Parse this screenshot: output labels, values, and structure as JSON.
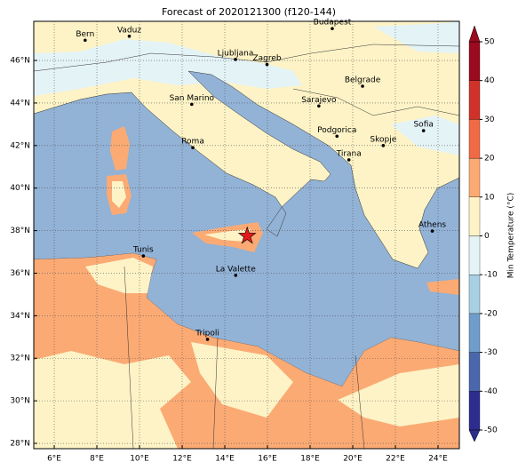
{
  "title": "Forecast of 2020121300 (f120-144)",
  "map": {
    "xlim": [
      5.04,
      25
    ],
    "ylim": [
      27.75,
      47.84
    ],
    "grid": true,
    "xticks": [
      {
        "value": 6,
        "label": "6°E"
      },
      {
        "value": 8,
        "label": "8°E"
      },
      {
        "value": 10,
        "label": "10°E"
      },
      {
        "value": 12,
        "label": "12°E"
      },
      {
        "value": 14,
        "label": "14°E"
      },
      {
        "value": 16,
        "label": "16°E"
      },
      {
        "value": 18,
        "label": "18°E"
      },
      {
        "value": 20,
        "label": "20°E"
      },
      {
        "value": 22,
        "label": "22°E"
      },
      {
        "value": 24,
        "label": "24°E"
      }
    ],
    "yticks": [
      {
        "value": 28,
        "label": "28°N"
      },
      {
        "value": 30,
        "label": "30°N"
      },
      {
        "value": 32,
        "label": "32°N"
      },
      {
        "value": 34,
        "label": "34°N"
      },
      {
        "value": 36,
        "label": "36°N"
      },
      {
        "value": 38,
        "label": "38°N"
      },
      {
        "value": 40,
        "label": "40°N"
      },
      {
        "value": 42,
        "label": "42°N"
      },
      {
        "value": 44,
        "label": "44°N"
      },
      {
        "value": 46,
        "label": "46°N"
      }
    ],
    "cities": [
      {
        "name": "Bern",
        "lon": 7.45,
        "lat": 46.95
      },
      {
        "name": "Vaduz",
        "lon": 9.52,
        "lat": 47.14
      },
      {
        "name": "Budapest",
        "lon": 19.04,
        "lat": 47.5
      },
      {
        "name": "Ljubljana",
        "lon": 14.5,
        "lat": 46.05
      },
      {
        "name": "Zagreb",
        "lon": 15.98,
        "lat": 45.81
      },
      {
        "name": "San Marino",
        "lon": 12.45,
        "lat": 43.94
      },
      {
        "name": "Belgrade",
        "lon": 20.46,
        "lat": 44.79
      },
      {
        "name": "Sarajevo",
        "lon": 18.41,
        "lat": 43.86
      },
      {
        "name": "Sofia",
        "lon": 23.32,
        "lat": 42.7
      },
      {
        "name": "Podgorica",
        "lon": 19.26,
        "lat": 42.44
      },
      {
        "name": "Skopje",
        "lon": 21.43,
        "lat": 42.0
      },
      {
        "name": "Roma",
        "lon": 12.5,
        "lat": 41.9
      },
      {
        "name": "Tirana",
        "lon": 19.82,
        "lat": 41.33
      },
      {
        "name": "Athens",
        "lon": 23.73,
        "lat": 37.98
      },
      {
        "name": "Tunis",
        "lon": 10.18,
        "lat": 36.81
      },
      {
        "name": "La Valette",
        "lon": 14.51,
        "lat": 35.9
      },
      {
        "name": "Tripoli",
        "lon": 13.19,
        "lat": 32.89
      }
    ],
    "marker": {
      "lon": 15.05,
      "lat": 37.75,
      "color": "#e31a1c"
    }
  },
  "colorbar": {
    "label": "Min Temperature (°C)",
    "lim": [
      -50,
      50
    ],
    "ticks": [
      -50,
      -40,
      -30,
      -20,
      -10,
      0,
      10,
      20,
      30,
      40,
      50
    ],
    "colors": [
      "#2d2d8f",
      "#4a66ad",
      "#6f9dcb",
      "#a9cfe3",
      "#e4f3f6",
      "#fdf3c6",
      "#fbaa74",
      "#f06a45",
      "#d03128",
      "#9b0a1e"
    ]
  }
}
